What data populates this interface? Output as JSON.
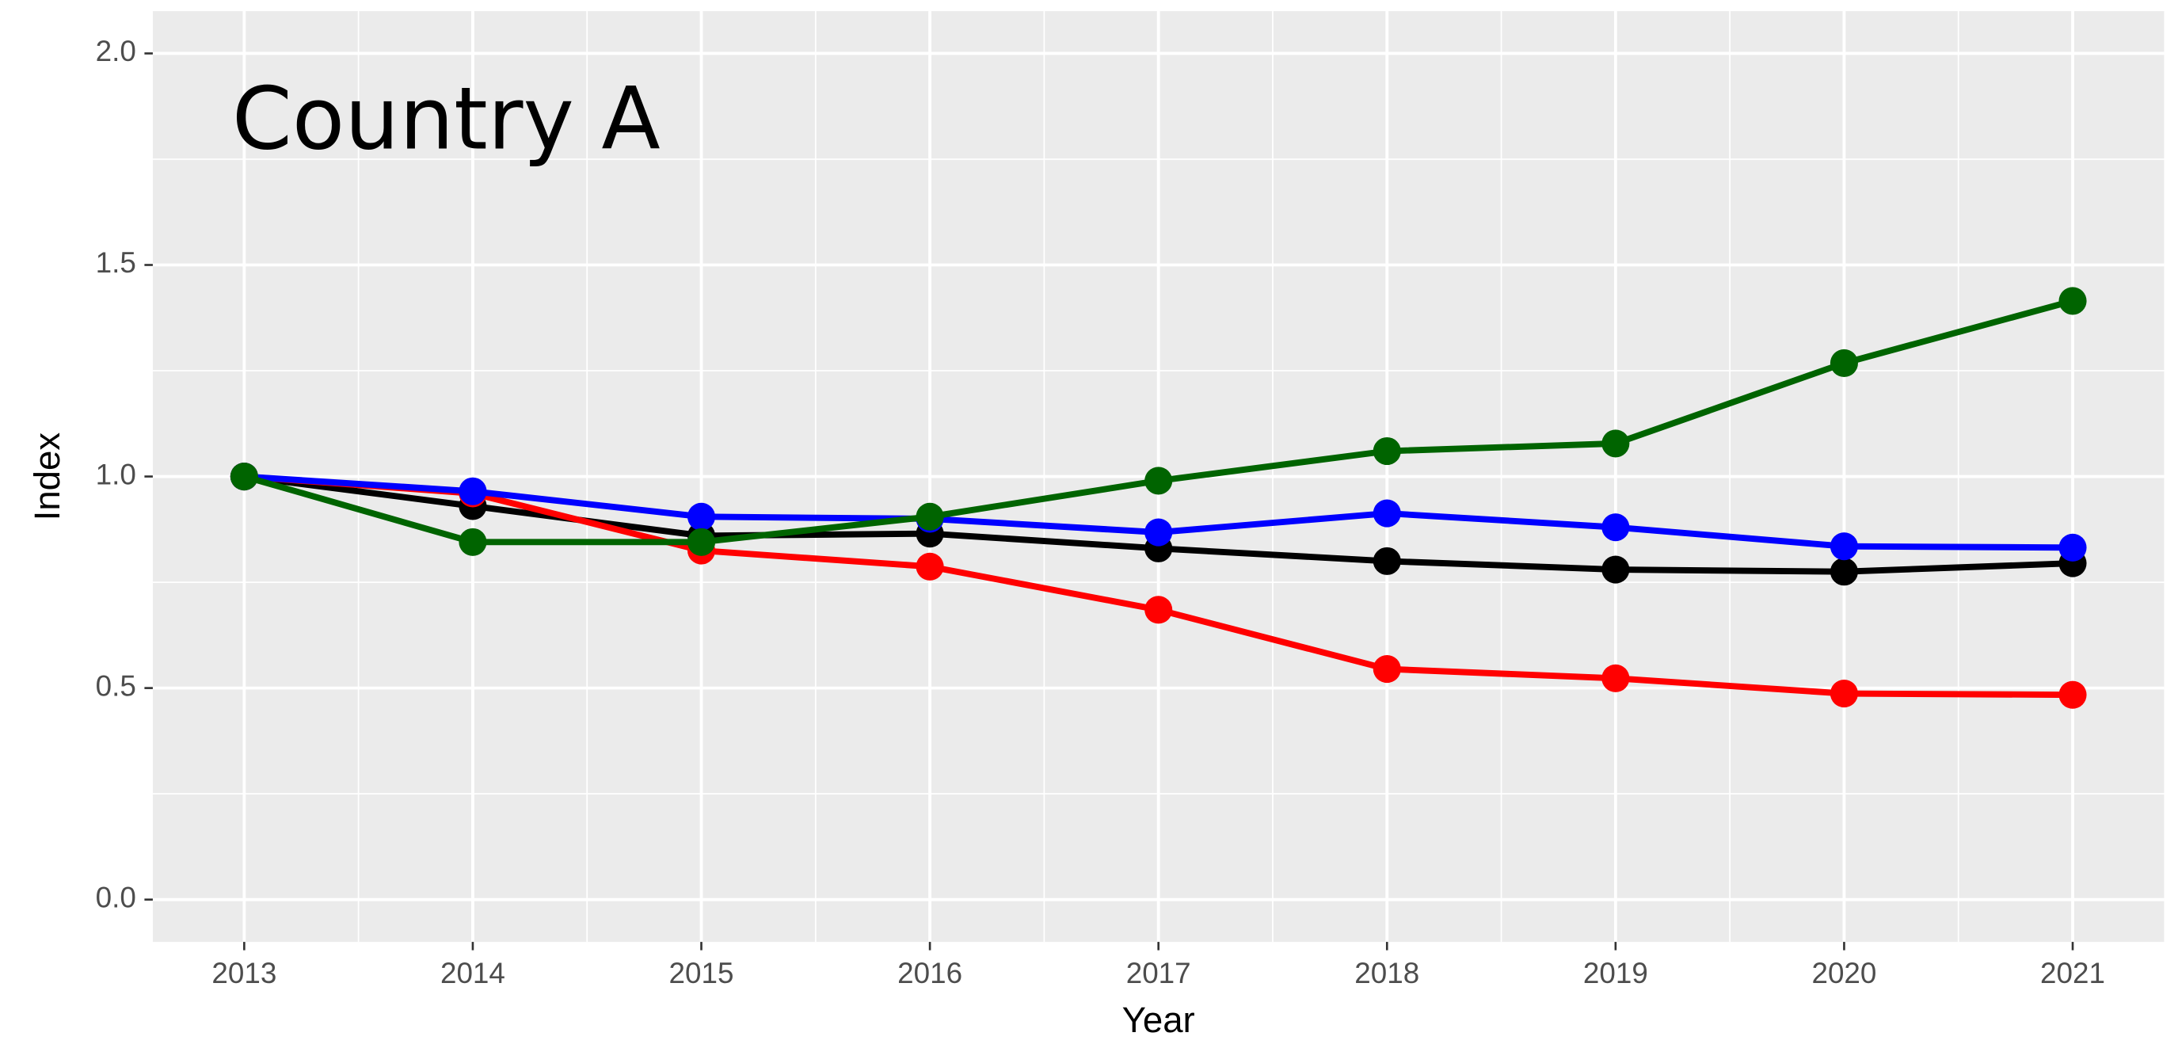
{
  "chart_data": {
    "type": "line",
    "annotation": "Country A",
    "x_label": "Year",
    "y_label": "Index",
    "x": [
      2013,
      2014,
      2015,
      2016,
      2017,
      2018,
      2019,
      2020,
      2021
    ],
    "series": [
      {
        "color": "#000000",
        "values": [
          1.0,
          0.93,
          0.86,
          0.865,
          0.83,
          0.8,
          0.78,
          0.775,
          0.795
        ]
      },
      {
        "color": "#ff0000",
        "values": [
          1.0,
          0.96,
          0.825,
          0.787,
          0.685,
          0.545,
          0.523,
          0.487,
          0.484
        ]
      },
      {
        "color": "#0000ff",
        "values": [
          1.0,
          0.965,
          0.905,
          0.9,
          0.868,
          0.913,
          0.88,
          0.835,
          0.832
        ]
      },
      {
        "color": "#006400",
        "values": [
          1.0,
          0.845,
          0.845,
          0.905,
          0.99,
          1.06,
          1.078,
          1.268,
          1.415
        ]
      }
    ],
    "xlim": [
      2012.6,
      2021.4
    ],
    "xticks": [
      2013,
      2014,
      2015,
      2016,
      2017,
      2018,
      2019,
      2020,
      2021
    ],
    "ylim": [
      -0.1,
      2.1
    ],
    "yticks": [
      {
        "value": 0,
        "label": "0.0"
      },
      0.5,
      {
        "value": 1,
        "label": "1.0"
      },
      1.5,
      {
        "value": 2,
        "label": "2.0"
      }
    ],
    "grid": true
  }
}
